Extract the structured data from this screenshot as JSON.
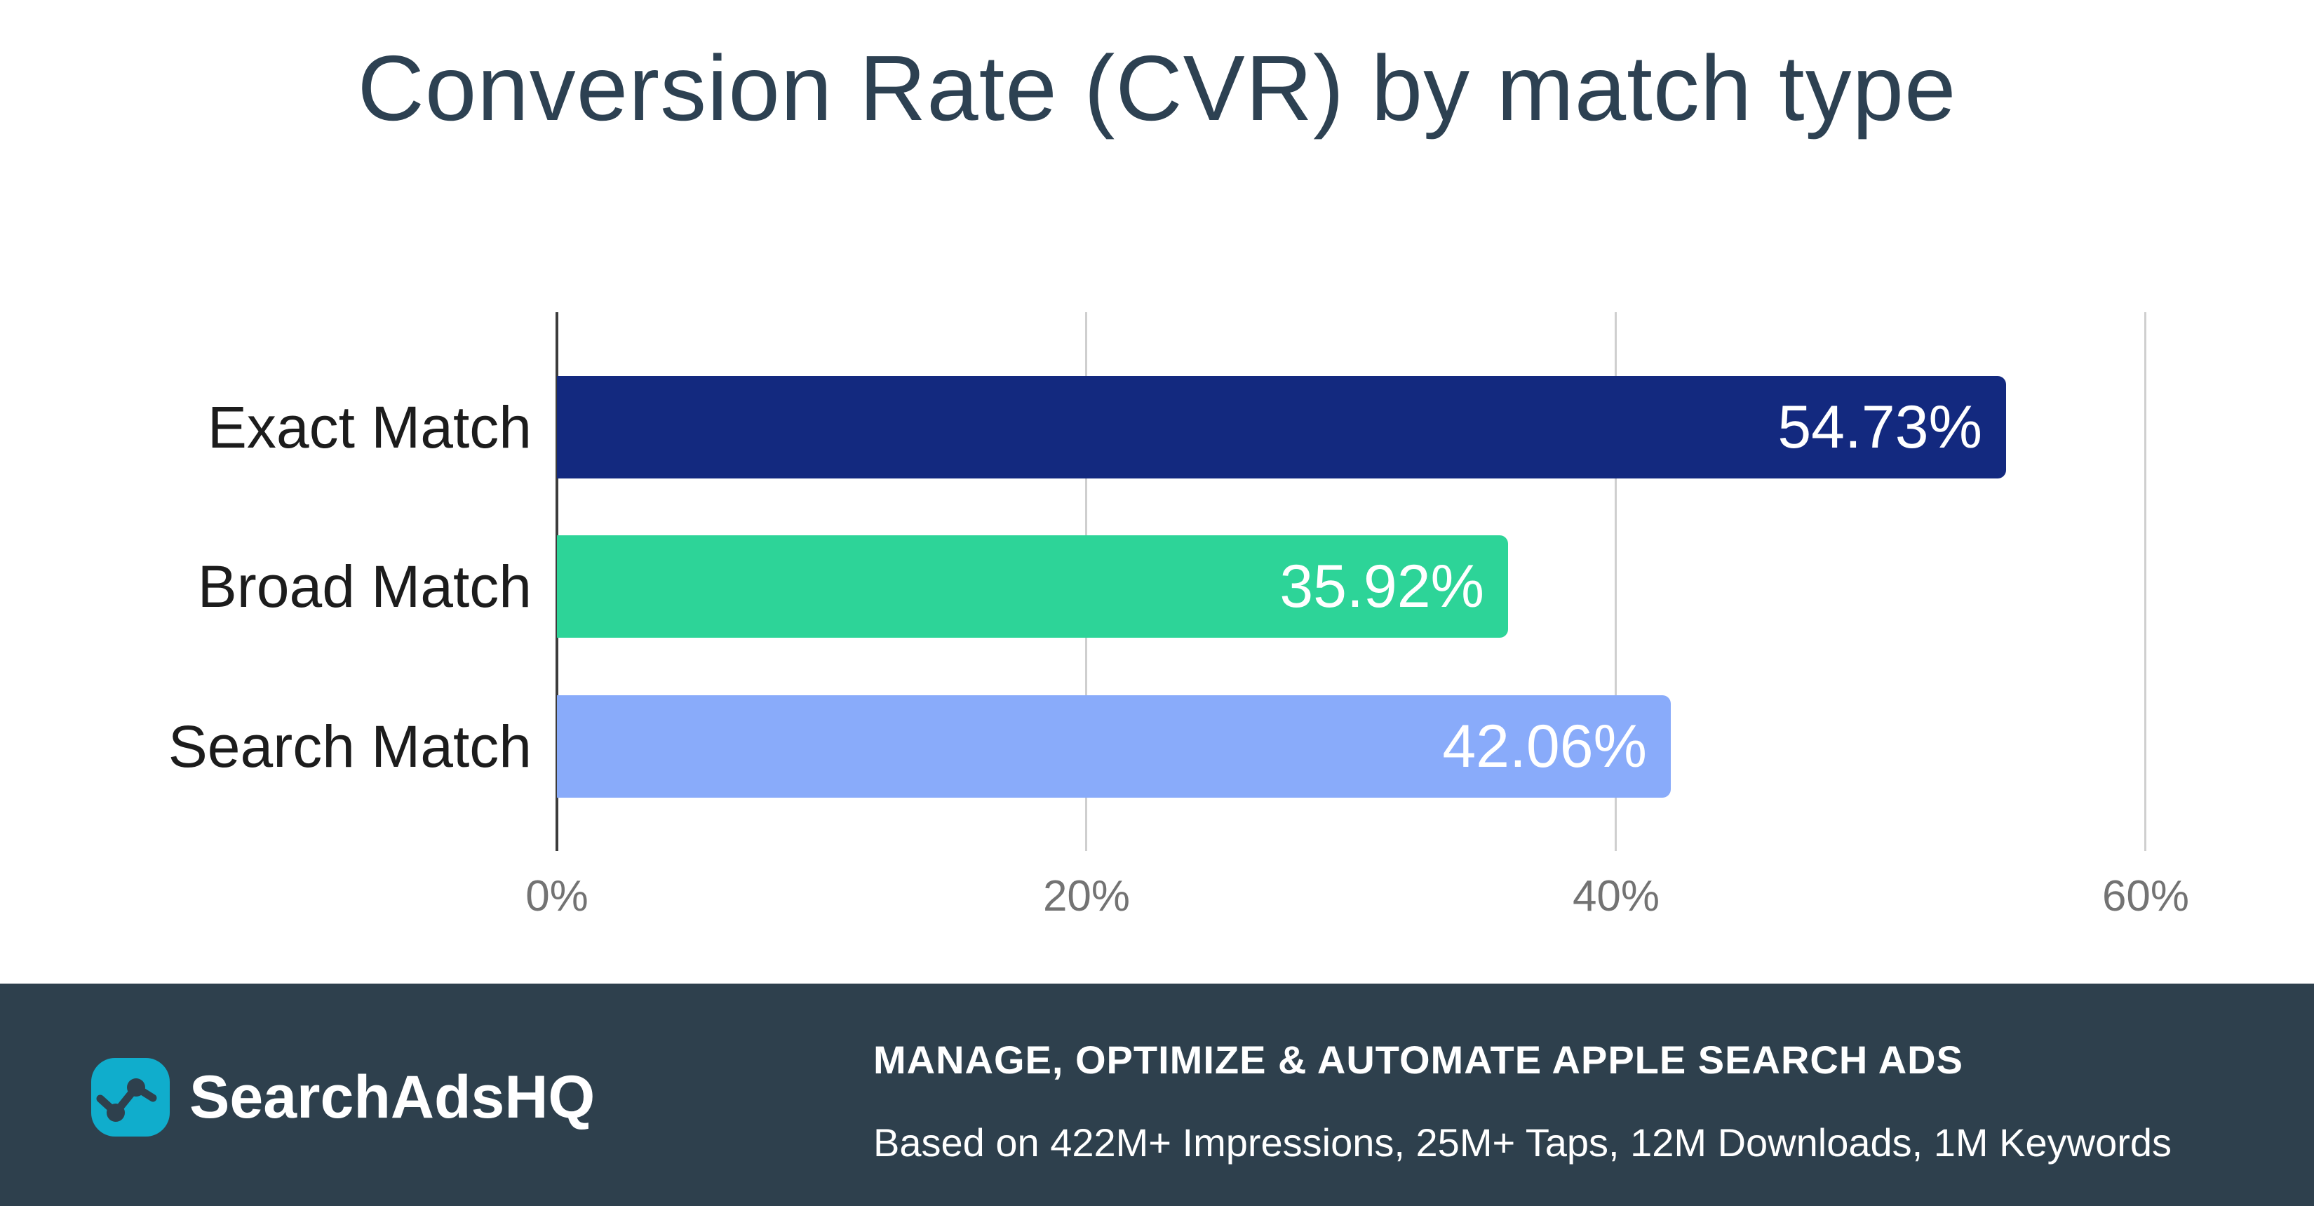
{
  "title": "Conversion Rate (CVR) by match type",
  "chart_data": {
    "type": "bar",
    "orientation": "horizontal",
    "title": "Conversion Rate (CVR) by match type",
    "categories": [
      "Exact Match",
      "Broad Match",
      "Search Match"
    ],
    "values": [
      54.73,
      35.92,
      42.06
    ],
    "value_labels": [
      "54.73%",
      "35.92%",
      "42.06%"
    ],
    "bar_colors": [
      "#13297f",
      "#2dd498",
      "#89abfa"
    ],
    "xlabel": "",
    "ylabel": "",
    "xlim": [
      0,
      65
    ],
    "x_tick_values": [
      0,
      20,
      40,
      60
    ],
    "x_tick_labels": [
      "0%",
      "20%",
      "40%",
      "60%"
    ],
    "grid": true,
    "legend": false,
    "value_label_position": "inside-end",
    "value_label_color": "#ffffff"
  },
  "footer": {
    "logo_text": "SearchAdsHQ",
    "logo_icon": "pulse-line-chart-icon",
    "headline": "MANAGE, OPTIMIZE & AUTOMATE APPLE SEARCH ADS",
    "subline": "Based on 422M+ Impressions, 25M+ Taps, 12M Downloads, 1M Keywords"
  },
  "colors": {
    "slate_text": "#2d4152",
    "footer_bg": "#2e404d",
    "logo_teal": "#10adcc",
    "gridline": "#cfcfcf",
    "axis_line": "#3c3c3c",
    "tick_label": "#737373",
    "category_label": "#1c1c1c"
  }
}
